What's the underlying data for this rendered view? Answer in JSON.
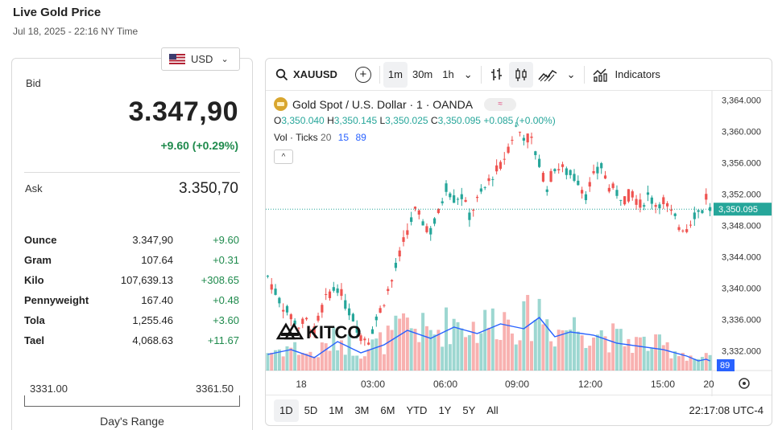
{
  "header": {
    "title": "Live Gold Price",
    "timestamp": "Jul 18, 2025 - 22:16 NY Time"
  },
  "currency": {
    "code": "USD",
    "flag_icon": "us-flag-icon"
  },
  "quote": {
    "bid_label": "Bid",
    "bid": "3.347,90",
    "bid_change": "+9.60 (+0.29%)",
    "ask_label": "Ask",
    "ask": "3.350,70"
  },
  "units": [
    {
      "name": "Ounce",
      "price": "3.347,90",
      "change": "+9.60"
    },
    {
      "name": "Gram",
      "price": "107.64",
      "change": "+0.31"
    },
    {
      "name": "Kilo",
      "price": "107,639.13",
      "change": "+308.65"
    },
    {
      "name": "Pennyweight",
      "price": "167.40",
      "change": "+0.48"
    },
    {
      "name": "Tola",
      "price": "1,255.46",
      "change": "+3.60"
    },
    {
      "name": "Tael",
      "price": "4,068.63",
      "change": "+11.67"
    }
  ],
  "days_range": {
    "low": "3331.00",
    "high": "3361.50",
    "label": "Day's Range"
  },
  "chart_toolbar": {
    "symbol": "XAUUSD",
    "intervals": [
      "1m",
      "30m",
      "1h"
    ],
    "active_interval": "1m",
    "indicators_label": "Indicators"
  },
  "chart_legend": {
    "title": "Gold Spot / U.S. Dollar · 1 · OANDA",
    "pill": "≈",
    "o_key": "O",
    "o": "3,350.040",
    "h_key": "H",
    "h": "3,350.145",
    "l_key": "L",
    "l": "3,350.025",
    "c_key": "C",
    "c": "3,350.095",
    "change": "+0.085 (+0.00%)",
    "vol_label": "Vol · Ticks",
    "vol_len": "20",
    "vol_a": "15",
    "vol_b": "89"
  },
  "watermark": "KITCO",
  "chart_data": {
    "type": "candlestick",
    "y_ticks": [
      "3,364.000",
      "3,360.000",
      "3,356.000",
      "3,352.000",
      "3,348.000",
      "3,344.000",
      "3,340.000",
      "3,336.000",
      "3,332.000"
    ],
    "y_range": [
      3329.5,
      3365.2
    ],
    "x_ticks": [
      "18",
      "03:00",
      "06:00",
      "09:00",
      "12:00",
      "15:00",
      "20"
    ],
    "last_price": 3350.095,
    "last_price_label": "3,350.095",
    "volume_last": "89",
    "price_path": [
      [
        0,
        3341.5
      ],
      [
        3,
        3338.5
      ],
      [
        5,
        3337.0
      ],
      [
        8,
        3335.2
      ],
      [
        10,
        3335.8
      ],
      [
        12,
        3334.4
      ],
      [
        14,
        3337.5
      ],
      [
        16,
        3339.5
      ],
      [
        18,
        3340.2
      ],
      [
        20,
        3338.0
      ],
      [
        22,
        3336.2
      ],
      [
        24,
        3334.0
      ],
      [
        26,
        3333.6
      ],
      [
        28,
        3336.0
      ],
      [
        30,
        3338.5
      ],
      [
        32,
        3341.0
      ],
      [
        34,
        3344.2
      ],
      [
        36,
        3347.5
      ],
      [
        38,
        3349.8
      ],
      [
        40,
        3348.5
      ],
      [
        42,
        3347.3
      ],
      [
        44,
        3349.5
      ],
      [
        46,
        3353.0
      ],
      [
        48,
        3351.5
      ],
      [
        50,
        3351.8
      ],
      [
        52,
        3349.3
      ],
      [
        54,
        3351.2
      ],
      [
        56,
        3352.8
      ],
      [
        58,
        3354.5
      ],
      [
        60,
        3355.5
      ],
      [
        62,
        3358.0
      ],
      [
        64,
        3360.5
      ],
      [
        66,
        3359.5
      ],
      [
        68,
        3358.8
      ],
      [
        70,
        3355.8
      ],
      [
        72,
        3353.0
      ],
      [
        74,
        3355.5
      ],
      [
        76,
        3355.2
      ],
      [
        78,
        3354.5
      ],
      [
        80,
        3353.8
      ],
      [
        82,
        3352.0
      ],
      [
        84,
        3354.2
      ],
      [
        86,
        3355.5
      ],
      [
        88,
        3353.0
      ],
      [
        90,
        3352.2
      ],
      [
        92,
        3351.5
      ],
      [
        94,
        3352.2
      ],
      [
        96,
        3350.6
      ],
      [
        98,
        3351.8
      ],
      [
        100,
        3350.8
      ],
      [
        102,
        3351.2
      ],
      [
        104,
        3349.5
      ],
      [
        106,
        3348.0
      ],
      [
        108,
        3347.8
      ],
      [
        110,
        3349.5
      ],
      [
        112,
        3350.0
      ],
      [
        113,
        3351.8
      ],
      [
        114,
        3350.1
      ]
    ],
    "volume_path": [
      [
        0,
        10
      ],
      [
        6,
        13
      ],
      [
        12,
        8
      ],
      [
        18,
        18
      ],
      [
        24,
        11
      ],
      [
        30,
        16
      ],
      [
        36,
        25
      ],
      [
        42,
        20
      ],
      [
        48,
        27
      ],
      [
        54,
        23
      ],
      [
        60,
        29
      ],
      [
        66,
        26
      ],
      [
        70,
        33
      ],
      [
        74,
        21
      ],
      [
        78,
        24
      ],
      [
        84,
        22
      ],
      [
        90,
        17
      ],
      [
        96,
        15
      ],
      [
        102,
        13
      ],
      [
        108,
        9
      ],
      [
        111,
        6
      ],
      [
        113,
        7
      ],
      [
        114,
        6
      ]
    ]
  },
  "range_buttons": [
    "1D",
    "5D",
    "1M",
    "3M",
    "6M",
    "YTD",
    "1Y",
    "5Y",
    "All"
  ],
  "active_range": "1D",
  "clock": "22:17:08 UTC-4",
  "colors": {
    "up": "#26a69a",
    "down": "#ef5350",
    "accent": "#2962ff",
    "positive": "#1e8a4c"
  }
}
